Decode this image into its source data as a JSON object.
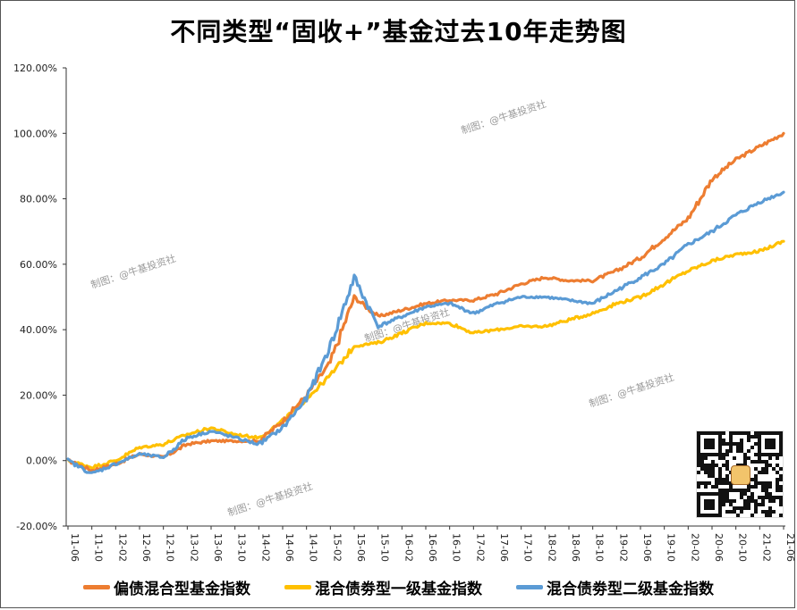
{
  "title": "不同类型“固收+”基金过去10年走势图",
  "watermarks": [
    "制图：@牛基投资社",
    "制图：@牛基投资社",
    "制图：@牛基投资社",
    "制图：@牛基投资社",
    "制图：@牛基投资社"
  ],
  "chart_data": {
    "type": "line",
    "xlabel": "",
    "ylabel": "",
    "ylim": [
      -20,
      120
    ],
    "yticks": [
      "120.00%",
      "100.00%",
      "80.00%",
      "60.00%",
      "40.00%",
      "20.00%",
      "0.00%",
      "-20.00%"
    ],
    "ytick_values": [
      120,
      100,
      80,
      60,
      40,
      20,
      0,
      -20
    ],
    "categories": [
      "11-06",
      "11-10",
      "12-02",
      "12-06",
      "12-10",
      "13-02",
      "13-06",
      "13-10",
      "14-02",
      "14-06",
      "14-10",
      "15-02",
      "15-06",
      "15-10",
      "16-02",
      "16-06",
      "16-10",
      "17-02",
      "17-06",
      "17-10",
      "18-02",
      "18-06",
      "18-10",
      "19-02",
      "19-06",
      "19-10",
      "20-02",
      "20-06",
      "20-10",
      "21-02",
      "21-06"
    ],
    "grid": false,
    "legend_position": "bottom",
    "series": [
      {
        "name": "偏债混合型基金指数",
        "color": "#ed7d31",
        "values": [
          0,
          -3,
          -1,
          2,
          1,
          5,
          6,
          6,
          6,
          12,
          20,
          30,
          50,
          44,
          46,
          48,
          49,
          49,
          51,
          54,
          56,
          55,
          55,
          58,
          62,
          68,
          74,
          86,
          92,
          96,
          100
        ]
      },
      {
        "name": "混合债劵型一级基金指数",
        "color": "#ffc000",
        "values": [
          0,
          -2,
          0,
          4,
          5,
          8,
          10,
          8,
          7,
          12,
          19,
          26,
          35,
          36,
          39,
          42,
          42,
          39,
          40,
          41,
          41,
          43,
          45,
          48,
          50,
          54,
          58,
          61,
          63,
          64,
          67
        ]
      },
      {
        "name": "混合债劵型二级基金指数",
        "color": "#5b9bd5",
        "values": [
          0,
          -4,
          -1,
          2,
          1,
          7,
          9,
          7,
          5,
          10,
          19,
          35,
          56,
          41,
          44,
          47,
          48,
          45,
          48,
          50,
          50,
          49,
          48,
          52,
          56,
          60,
          66,
          70,
          75,
          79,
          82
        ]
      }
    ]
  }
}
